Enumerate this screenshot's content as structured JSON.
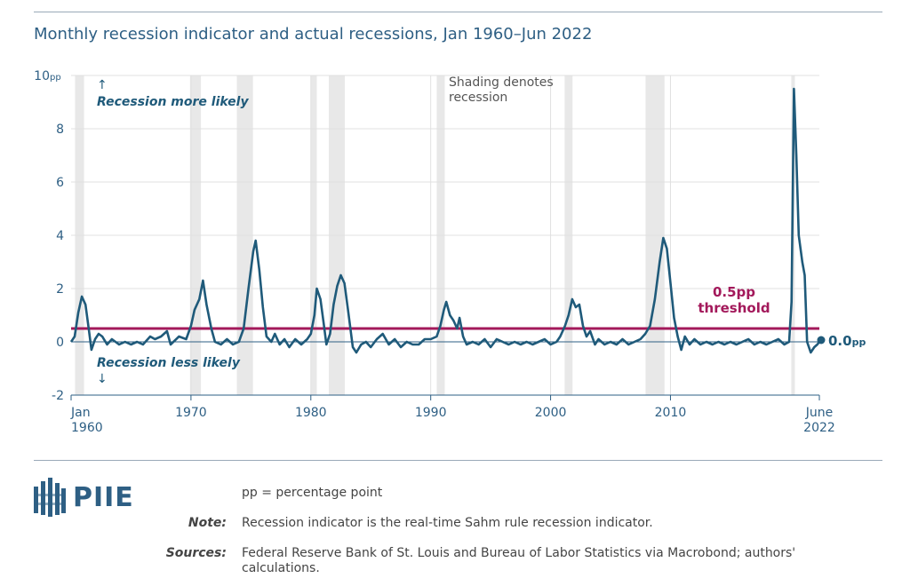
{
  "title": "Monthly recession indicator and actual recessions, Jan 1960–Jun 2022",
  "chart_data": {
    "type": "line",
    "title": "Monthly recession indicator and actual recessions, Jan 1960–Jun 2022",
    "ylabel_unit": "pp",
    "ylim": [
      -2,
      10
    ],
    "xlim": [
      1960.0,
      2022.42
    ],
    "y_ticks": [
      -2,
      0,
      2,
      4,
      6,
      8,
      10
    ],
    "y_tick_labels": [
      "-2",
      "0",
      "2",
      "4",
      "6",
      "8",
      "10"
    ],
    "x_ticks": [
      {
        "value": 1960.0,
        "label1": "Jan",
        "label2": "1960"
      },
      {
        "value": 1970,
        "label1": "1970",
        "label2": ""
      },
      {
        "value": 1980,
        "label1": "1980",
        "label2": ""
      },
      {
        "value": 1990,
        "label1": "1990",
        "label2": ""
      },
      {
        "value": 2000,
        "label1": "2000",
        "label2": ""
      },
      {
        "value": 2010,
        "label1": "2010",
        "label2": ""
      },
      {
        "value": 2022.42,
        "label1": "June",
        "label2": "2022"
      }
    ],
    "threshold": {
      "value": 0.5,
      "label_line1": "0.5pp",
      "label_line2": "threshold",
      "color": "#a3195b"
    },
    "end_label": {
      "value": 0.0,
      "text": "0.0",
      "unit": "pp"
    },
    "recessions": [
      [
        1960.33,
        1961.08
      ],
      [
        1969.92,
        1970.83
      ],
      [
        1973.83,
        1975.17
      ],
      [
        1980.0,
        1980.5
      ],
      [
        1981.5,
        1982.83
      ],
      [
        1990.5,
        1991.17
      ],
      [
        2001.17,
        2001.83
      ],
      [
        2007.92,
        2009.5
      ],
      [
        2020.08,
        2020.33
      ]
    ],
    "series": [
      {
        "name": "Real-time Sahm rule recession indicator",
        "color": "#1f5a7a",
        "points": [
          [
            1960.0,
            0.0
          ],
          [
            1960.3,
            0.2
          ],
          [
            1960.6,
            1.1
          ],
          [
            1960.9,
            1.7
          ],
          [
            1961.2,
            1.4
          ],
          [
            1961.5,
            0.4
          ],
          [
            1961.7,
            -0.3
          ],
          [
            1962.0,
            0.1
          ],
          [
            1962.3,
            0.3
          ],
          [
            1962.6,
            0.2
          ],
          [
            1963.0,
            -0.1
          ],
          [
            1963.4,
            0.1
          ],
          [
            1964.0,
            -0.1
          ],
          [
            1964.5,
            0.0
          ],
          [
            1965.0,
            -0.1
          ],
          [
            1965.5,
            0.0
          ],
          [
            1966.0,
            -0.1
          ],
          [
            1966.6,
            0.2
          ],
          [
            1967.0,
            0.1
          ],
          [
            1967.5,
            0.2
          ],
          [
            1968.0,
            0.4
          ],
          [
            1968.3,
            -0.1
          ],
          [
            1969.0,
            0.2
          ],
          [
            1969.6,
            0.1
          ],
          [
            1970.0,
            0.6
          ],
          [
            1970.3,
            1.2
          ],
          [
            1970.7,
            1.6
          ],
          [
            1971.0,
            2.3
          ],
          [
            1971.3,
            1.4
          ],
          [
            1971.7,
            0.5
          ],
          [
            1972.0,
            0.0
          ],
          [
            1972.5,
            -0.1
          ],
          [
            1973.0,
            0.1
          ],
          [
            1973.5,
            -0.1
          ],
          [
            1974.0,
            0.0
          ],
          [
            1974.4,
            0.5
          ],
          [
            1974.8,
            2.0
          ],
          [
            1975.2,
            3.4
          ],
          [
            1975.4,
            3.8
          ],
          [
            1975.7,
            2.7
          ],
          [
            1976.0,
            1.3
          ],
          [
            1976.3,
            0.2
          ],
          [
            1976.7,
            0.0
          ],
          [
            1977.0,
            0.3
          ],
          [
            1977.4,
            -0.1
          ],
          [
            1977.8,
            0.1
          ],
          [
            1978.2,
            -0.2
          ],
          [
            1978.7,
            0.1
          ],
          [
            1979.2,
            -0.1
          ],
          [
            1979.7,
            0.1
          ],
          [
            1980.0,
            0.3
          ],
          [
            1980.3,
            1.0
          ],
          [
            1980.5,
            2.0
          ],
          [
            1980.8,
            1.6
          ],
          [
            1981.1,
            0.6
          ],
          [
            1981.3,
            -0.1
          ],
          [
            1981.6,
            0.3
          ],
          [
            1981.9,
            1.4
          ],
          [
            1982.2,
            2.1
          ],
          [
            1982.5,
            2.5
          ],
          [
            1982.8,
            2.2
          ],
          [
            1983.1,
            1.2
          ],
          [
            1983.5,
            -0.2
          ],
          [
            1983.8,
            -0.4
          ],
          [
            1984.2,
            -0.1
          ],
          [
            1984.6,
            0.0
          ],
          [
            1985.0,
            -0.2
          ],
          [
            1985.5,
            0.1
          ],
          [
            1986.0,
            0.3
          ],
          [
            1986.5,
            -0.1
          ],
          [
            1987.0,
            0.1
          ],
          [
            1987.5,
            -0.2
          ],
          [
            1988.0,
            0.0
          ],
          [
            1988.5,
            -0.1
          ],
          [
            1989.0,
            -0.1
          ],
          [
            1989.5,
            0.1
          ],
          [
            1990.0,
            0.1
          ],
          [
            1990.5,
            0.2
          ],
          [
            1990.8,
            0.6
          ],
          [
            1991.1,
            1.2
          ],
          [
            1991.3,
            1.5
          ],
          [
            1991.6,
            1.0
          ],
          [
            1991.9,
            0.8
          ],
          [
            1992.2,
            0.5
          ],
          [
            1992.4,
            0.9
          ],
          [
            1992.7,
            0.2
          ],
          [
            1993.0,
            -0.1
          ],
          [
            1993.5,
            0.0
          ],
          [
            1994.0,
            -0.1
          ],
          [
            1994.5,
            0.1
          ],
          [
            1995.0,
            -0.2
          ],
          [
            1995.5,
            0.1
          ],
          [
            1996.0,
            0.0
          ],
          [
            1996.5,
            -0.1
          ],
          [
            1997.0,
            0.0
          ],
          [
            1997.5,
            -0.1
          ],
          [
            1998.0,
            0.0
          ],
          [
            1998.5,
            -0.1
          ],
          [
            1999.0,
            0.0
          ],
          [
            1999.5,
            0.1
          ],
          [
            2000.0,
            -0.1
          ],
          [
            2000.5,
            0.0
          ],
          [
            2000.8,
            0.2
          ],
          [
            2001.2,
            0.6
          ],
          [
            2001.5,
            1.0
          ],
          [
            2001.8,
            1.6
          ],
          [
            2002.1,
            1.3
          ],
          [
            2002.4,
            1.4
          ],
          [
            2002.7,
            0.6
          ],
          [
            2003.0,
            0.2
          ],
          [
            2003.3,
            0.4
          ],
          [
            2003.7,
            -0.1
          ],
          [
            2004.0,
            0.1
          ],
          [
            2004.5,
            -0.1
          ],
          [
            2005.0,
            0.0
          ],
          [
            2005.5,
            -0.1
          ],
          [
            2006.0,
            0.1
          ],
          [
            2006.5,
            -0.1
          ],
          [
            2007.0,
            0.0
          ],
          [
            2007.5,
            0.1
          ],
          [
            2007.9,
            0.3
          ],
          [
            2008.3,
            0.6
          ],
          [
            2008.7,
            1.6
          ],
          [
            2009.1,
            3.0
          ],
          [
            2009.4,
            3.9
          ],
          [
            2009.7,
            3.5
          ],
          [
            2010.0,
            2.2
          ],
          [
            2010.3,
            0.9
          ],
          [
            2010.6,
            0.2
          ],
          [
            2010.9,
            -0.3
          ],
          [
            2011.2,
            0.2
          ],
          [
            2011.6,
            -0.1
          ],
          [
            2012.0,
            0.1
          ],
          [
            2012.5,
            -0.1
          ],
          [
            2013.0,
            0.0
          ],
          [
            2013.5,
            -0.1
          ],
          [
            2014.0,
            0.0
          ],
          [
            2014.5,
            -0.1
          ],
          [
            2015.0,
            0.0
          ],
          [
            2015.5,
            -0.1
          ],
          [
            2016.0,
            0.0
          ],
          [
            2016.5,
            0.1
          ],
          [
            2017.0,
            -0.1
          ],
          [
            2017.5,
            0.0
          ],
          [
            2018.0,
            -0.1
          ],
          [
            2018.5,
            0.0
          ],
          [
            2019.0,
            0.1
          ],
          [
            2019.5,
            -0.1
          ],
          [
            2019.9,
            0.0
          ],
          [
            2020.1,
            1.5
          ],
          [
            2020.3,
            9.5
          ],
          [
            2020.5,
            7.0
          ],
          [
            2020.7,
            4.0
          ],
          [
            2021.0,
            3.0
          ],
          [
            2021.2,
            2.5
          ],
          [
            2021.4,
            0.0
          ],
          [
            2021.7,
            -0.4
          ],
          [
            2022.0,
            -0.2
          ],
          [
            2022.25,
            -0.1
          ],
          [
            2022.42,
            0.0
          ]
        ]
      }
    ],
    "annotations": {
      "more_likely_arrow": "↑",
      "more_likely": "Recession more likely",
      "less_likely": "Recession less likely",
      "less_likely_arrow": "↓",
      "shading_line1": "Shading denotes",
      "shading_line2": "recession"
    }
  },
  "colors": {
    "title": "#2e5f84",
    "series": "#1f5a7a",
    "threshold": "#a3195b",
    "shading": "#e8e8e8",
    "grid": "#e0e0e0",
    "annotation": "#1f5a7a"
  },
  "footer": {
    "logo_text": "PIIE",
    "pp_note": "pp = percentage point",
    "note_label": "Note:",
    "note_text": "Recession indicator is the real-time Sahm rule recession indicator.",
    "sources_label": "Sources:",
    "sources_text": "Federal Reserve Bank of St. Louis and Bureau of Labor Statistics via Macrobond; authors' calculations."
  }
}
